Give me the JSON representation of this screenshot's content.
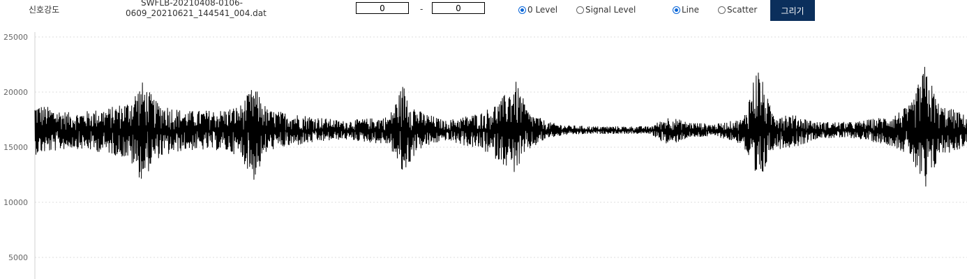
{
  "controls": {
    "signal_label": "신호강도",
    "filename_line1": "SWFLB-20210408-0106-",
    "filename_line2": "0609_20210621_144541_004.dat",
    "range_from": "0",
    "range_separator": "-",
    "range_to": "0",
    "level_options": [
      {
        "label": "0 Level",
        "checked": true
      },
      {
        "label": "Signal Level",
        "checked": false
      }
    ],
    "style_options": [
      {
        "label": "Line",
        "checked": true
      },
      {
        "label": "Scatter",
        "checked": false
      }
    ],
    "draw_button": "그리기",
    "accent_color": "#0b2f5c",
    "radio_color": "#0a66d8"
  },
  "chart_data": {
    "type": "line",
    "line_color": "#000000",
    "grid": "horizontal dotted",
    "ylim": [
      3000,
      25000
    ],
    "yticks": [
      "25000",
      "20000",
      "15000",
      "10000",
      "5000"
    ],
    "baseline": 16500,
    "envelope": {
      "x": [
        0,
        4,
        8,
        10,
        11.5,
        13,
        16,
        20,
        22,
        23.5,
        25,
        30,
        33,
        38,
        39.5,
        41,
        44,
        48,
        50,
        51.5,
        53,
        55,
        57,
        60,
        66,
        68,
        70,
        73,
        76,
        77.5,
        79,
        82,
        84,
        88,
        92,
        94,
        95.5,
        97,
        99,
        100
      ],
      "upper": [
        19000,
        18100,
        18600,
        19200,
        21000,
        19200,
        18300,
        18400,
        18800,
        20600,
        18400,
        17800,
        17400,
        17800,
        20800,
        18400,
        17400,
        18200,
        19300,
        21200,
        18200,
        17300,
        17000,
        16900,
        16900,
        17800,
        17300,
        17100,
        17600,
        22600,
        18400,
        17800,
        17300,
        17300,
        17900,
        18900,
        22500,
        18900,
        18300,
        17800
      ],
      "lower": [
        14300,
        14900,
        14400,
        13900,
        11800,
        13900,
        14700,
        14700,
        14200,
        11900,
        14700,
        15400,
        15700,
        15200,
        12300,
        14700,
        15600,
        14700,
        13600,
        12600,
        14700,
        15800,
        16100,
        16200,
        16200,
        15100,
        15800,
        16000,
        15200,
        10600,
        14700,
        15100,
        15800,
        15800,
        15100,
        14100,
        10300,
        14200,
        14700,
        15200
      ]
    }
  }
}
